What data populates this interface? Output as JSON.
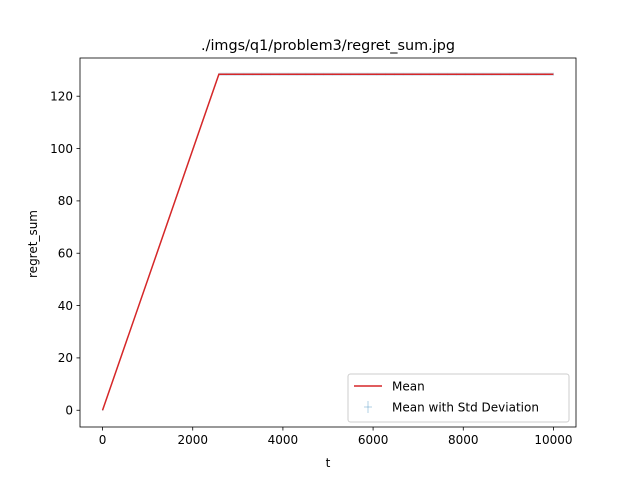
{
  "chart_data": {
    "type": "line",
    "title": "./imgs/q1/problem3/regret_sum.jpg",
    "xlabel": "t",
    "ylabel": "regret_sum",
    "xlim": [
      -500,
      10500
    ],
    "ylim": [
      -6.4,
      134.6
    ],
    "xticks": [
      0,
      2000,
      4000,
      6000,
      8000,
      10000
    ],
    "yticks": [
      0,
      20,
      40,
      60,
      80,
      100,
      120
    ],
    "grid": false,
    "legend_position": "lower right",
    "series": [
      {
        "name": "Mean",
        "color": "#d62728",
        "x": [
          0,
          2580,
          10000
        ],
        "y": [
          0,
          128.4,
          128.4
        ]
      },
      {
        "name": "Mean with Std Deviation",
        "color": "#1f77b4",
        "style": "errorbar",
        "x": [
          0,
          2580,
          10000
        ],
        "y": [
          0,
          128.4,
          128.4
        ],
        "std": [
          0.3,
          0.6,
          0.6
        ]
      }
    ]
  }
}
